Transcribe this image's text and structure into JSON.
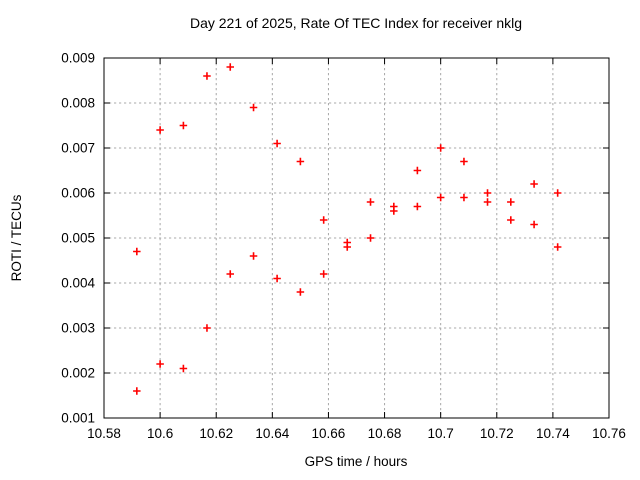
{
  "chart_data": {
    "type": "scatter",
    "title": "Day 221 of 2025, Rate Of TEC Index for receiver nklg",
    "xlabel": "GPS time / hours",
    "ylabel": "ROTI / TECUs",
    "xlim": [
      10.58,
      10.76
    ],
    "ylim": [
      0.001,
      0.009
    ],
    "grid": true,
    "legend": "none",
    "xticks": [
      {
        "v": 10.58,
        "label": "10.58"
      },
      {
        "v": 10.6,
        "label": "10.6"
      },
      {
        "v": 10.62,
        "label": "10.62"
      },
      {
        "v": 10.64,
        "label": "10.64"
      },
      {
        "v": 10.66,
        "label": "10.66"
      },
      {
        "v": 10.68,
        "label": "10.68"
      },
      {
        "v": 10.7,
        "label": "10.7"
      },
      {
        "v": 10.72,
        "label": "10.72"
      },
      {
        "v": 10.74,
        "label": "10.74"
      },
      {
        "v": 10.76,
        "label": "10.76"
      }
    ],
    "yticks": [
      {
        "v": 0.001,
        "label": "0.001"
      },
      {
        "v": 0.002,
        "label": "0.002"
      },
      {
        "v": 0.003,
        "label": "0.003"
      },
      {
        "v": 0.004,
        "label": "0.004"
      },
      {
        "v": 0.005,
        "label": "0.005"
      },
      {
        "v": 0.006,
        "label": "0.006"
      },
      {
        "v": 0.007,
        "label": "0.007"
      },
      {
        "v": 0.008,
        "label": "0.008"
      },
      {
        "v": 0.009,
        "label": "0.009"
      }
    ],
    "marker": {
      "shape": "plus",
      "color": "#ff0000",
      "size": 7.5,
      "stroke_width": 1.6
    },
    "series": [
      {
        "name": "roti",
        "points": [
          [
            10.5917,
            0.0047
          ],
          [
            10.5917,
            0.0016
          ],
          [
            10.6,
            0.0074
          ],
          [
            10.6,
            0.0022
          ],
          [
            10.6083,
            0.0075
          ],
          [
            10.6083,
            0.0021
          ],
          [
            10.6167,
            0.0086
          ],
          [
            10.6167,
            0.003
          ],
          [
            10.625,
            0.0088
          ],
          [
            10.625,
            0.0042
          ],
          [
            10.6333,
            0.0079
          ],
          [
            10.6333,
            0.0046
          ],
          [
            10.6417,
            0.0071
          ],
          [
            10.6417,
            0.0041
          ],
          [
            10.65,
            0.0067
          ],
          [
            10.65,
            0.0038
          ],
          [
            10.6583,
            0.0054
          ],
          [
            10.6583,
            0.0042
          ],
          [
            10.6667,
            0.0049
          ],
          [
            10.6667,
            0.0048
          ],
          [
            10.675,
            0.0058
          ],
          [
            10.675,
            0.005
          ],
          [
            10.6833,
            0.0057
          ],
          [
            10.6833,
            0.0056
          ],
          [
            10.6917,
            0.0065
          ],
          [
            10.6917,
            0.0057
          ],
          [
            10.7,
            0.007
          ],
          [
            10.7,
            0.0059
          ],
          [
            10.7083,
            0.0067
          ],
          [
            10.7083,
            0.0059
          ],
          [
            10.7167,
            0.006
          ],
          [
            10.7167,
            0.0058
          ],
          [
            10.725,
            0.0058
          ],
          [
            10.725,
            0.0054
          ],
          [
            10.7333,
            0.0062
          ],
          [
            10.7333,
            0.0053
          ],
          [
            10.7417,
            0.006
          ],
          [
            10.7417,
            0.0048
          ]
        ]
      }
    ]
  },
  "colors": {
    "background": "#ffffff",
    "axis": "#000000",
    "grid": "#a8a8a8",
    "marker": "#ff0000"
  }
}
